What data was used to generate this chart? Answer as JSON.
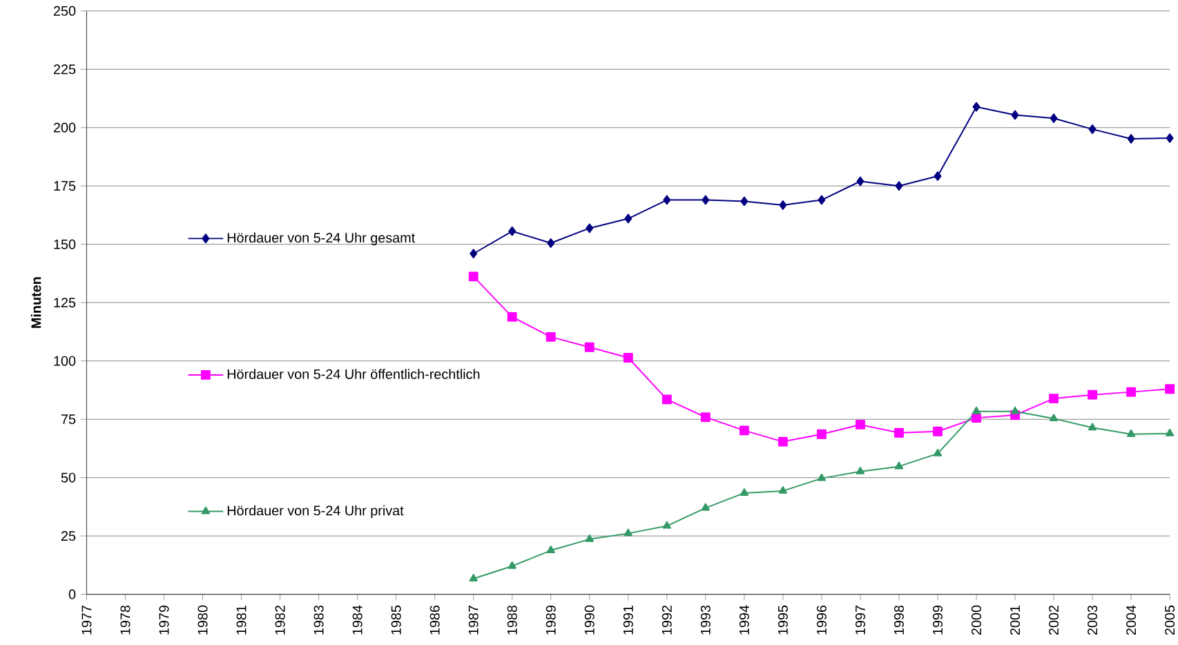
{
  "chart_data": {
    "type": "line",
    "ylabel": "Minuten",
    "x": [
      1987,
      1988,
      1989,
      1990,
      1991,
      1992,
      1993,
      1994,
      1995,
      1996,
      1997,
      1998,
      1999,
      2000,
      2001,
      2002,
      2003,
      2004,
      2005
    ],
    "series": [
      {
        "name": "Hördauer von 5-24 Uhr gesamt",
        "color": "#000080",
        "marker": "diamond",
        "values": [
          146.0,
          155.6,
          150.5,
          156.9,
          161.0,
          169.0,
          169.0,
          168.4,
          166.8,
          169.0,
          177.0,
          175.0,
          179.2,
          208.9,
          205.4,
          204.0,
          199.3,
          195.2,
          195.5
        ]
      },
      {
        "name": "Hördauer von 5-24 Uhr öffentlich-rechtlich",
        "color": "#ff00ff",
        "marker": "square",
        "values": [
          136.2,
          118.9,
          110.3,
          105.9,
          101.4,
          83.5,
          75.9,
          70.2,
          65.4,
          68.6,
          72.7,
          69.2,
          69.8,
          75.6,
          76.8,
          83.9,
          85.5,
          86.7,
          88.0
        ]
      },
      {
        "name": "Hördauer von 5-24 Uhr privat",
        "color": "#339966",
        "marker": "triangle",
        "values": [
          6.7,
          12.1,
          18.8,
          23.6,
          26.1,
          29.3,
          37.0,
          43.4,
          44.3,
          49.7,
          52.6,
          54.8,
          60.3,
          78.4,
          78.4,
          75.3,
          71.4,
          68.6,
          68.9
        ]
      }
    ],
    "xlim": [
      1977,
      2005
    ],
    "xticks": [
      1977,
      1978,
      1979,
      1980,
      1981,
      1982,
      1983,
      1984,
      1985,
      1986,
      1987,
      1988,
      1989,
      1990,
      1991,
      1992,
      1993,
      1994,
      1995,
      1996,
      1997,
      1998,
      1999,
      2000,
      2001,
      2002,
      2003,
      2004,
      2005
    ],
    "ylim": [
      0,
      250
    ],
    "yticks": [
      0,
      25,
      50,
      75,
      100,
      125,
      150,
      175,
      200,
      225,
      250
    ],
    "grid": "y",
    "legend": "left",
    "line_style": "solid"
  }
}
